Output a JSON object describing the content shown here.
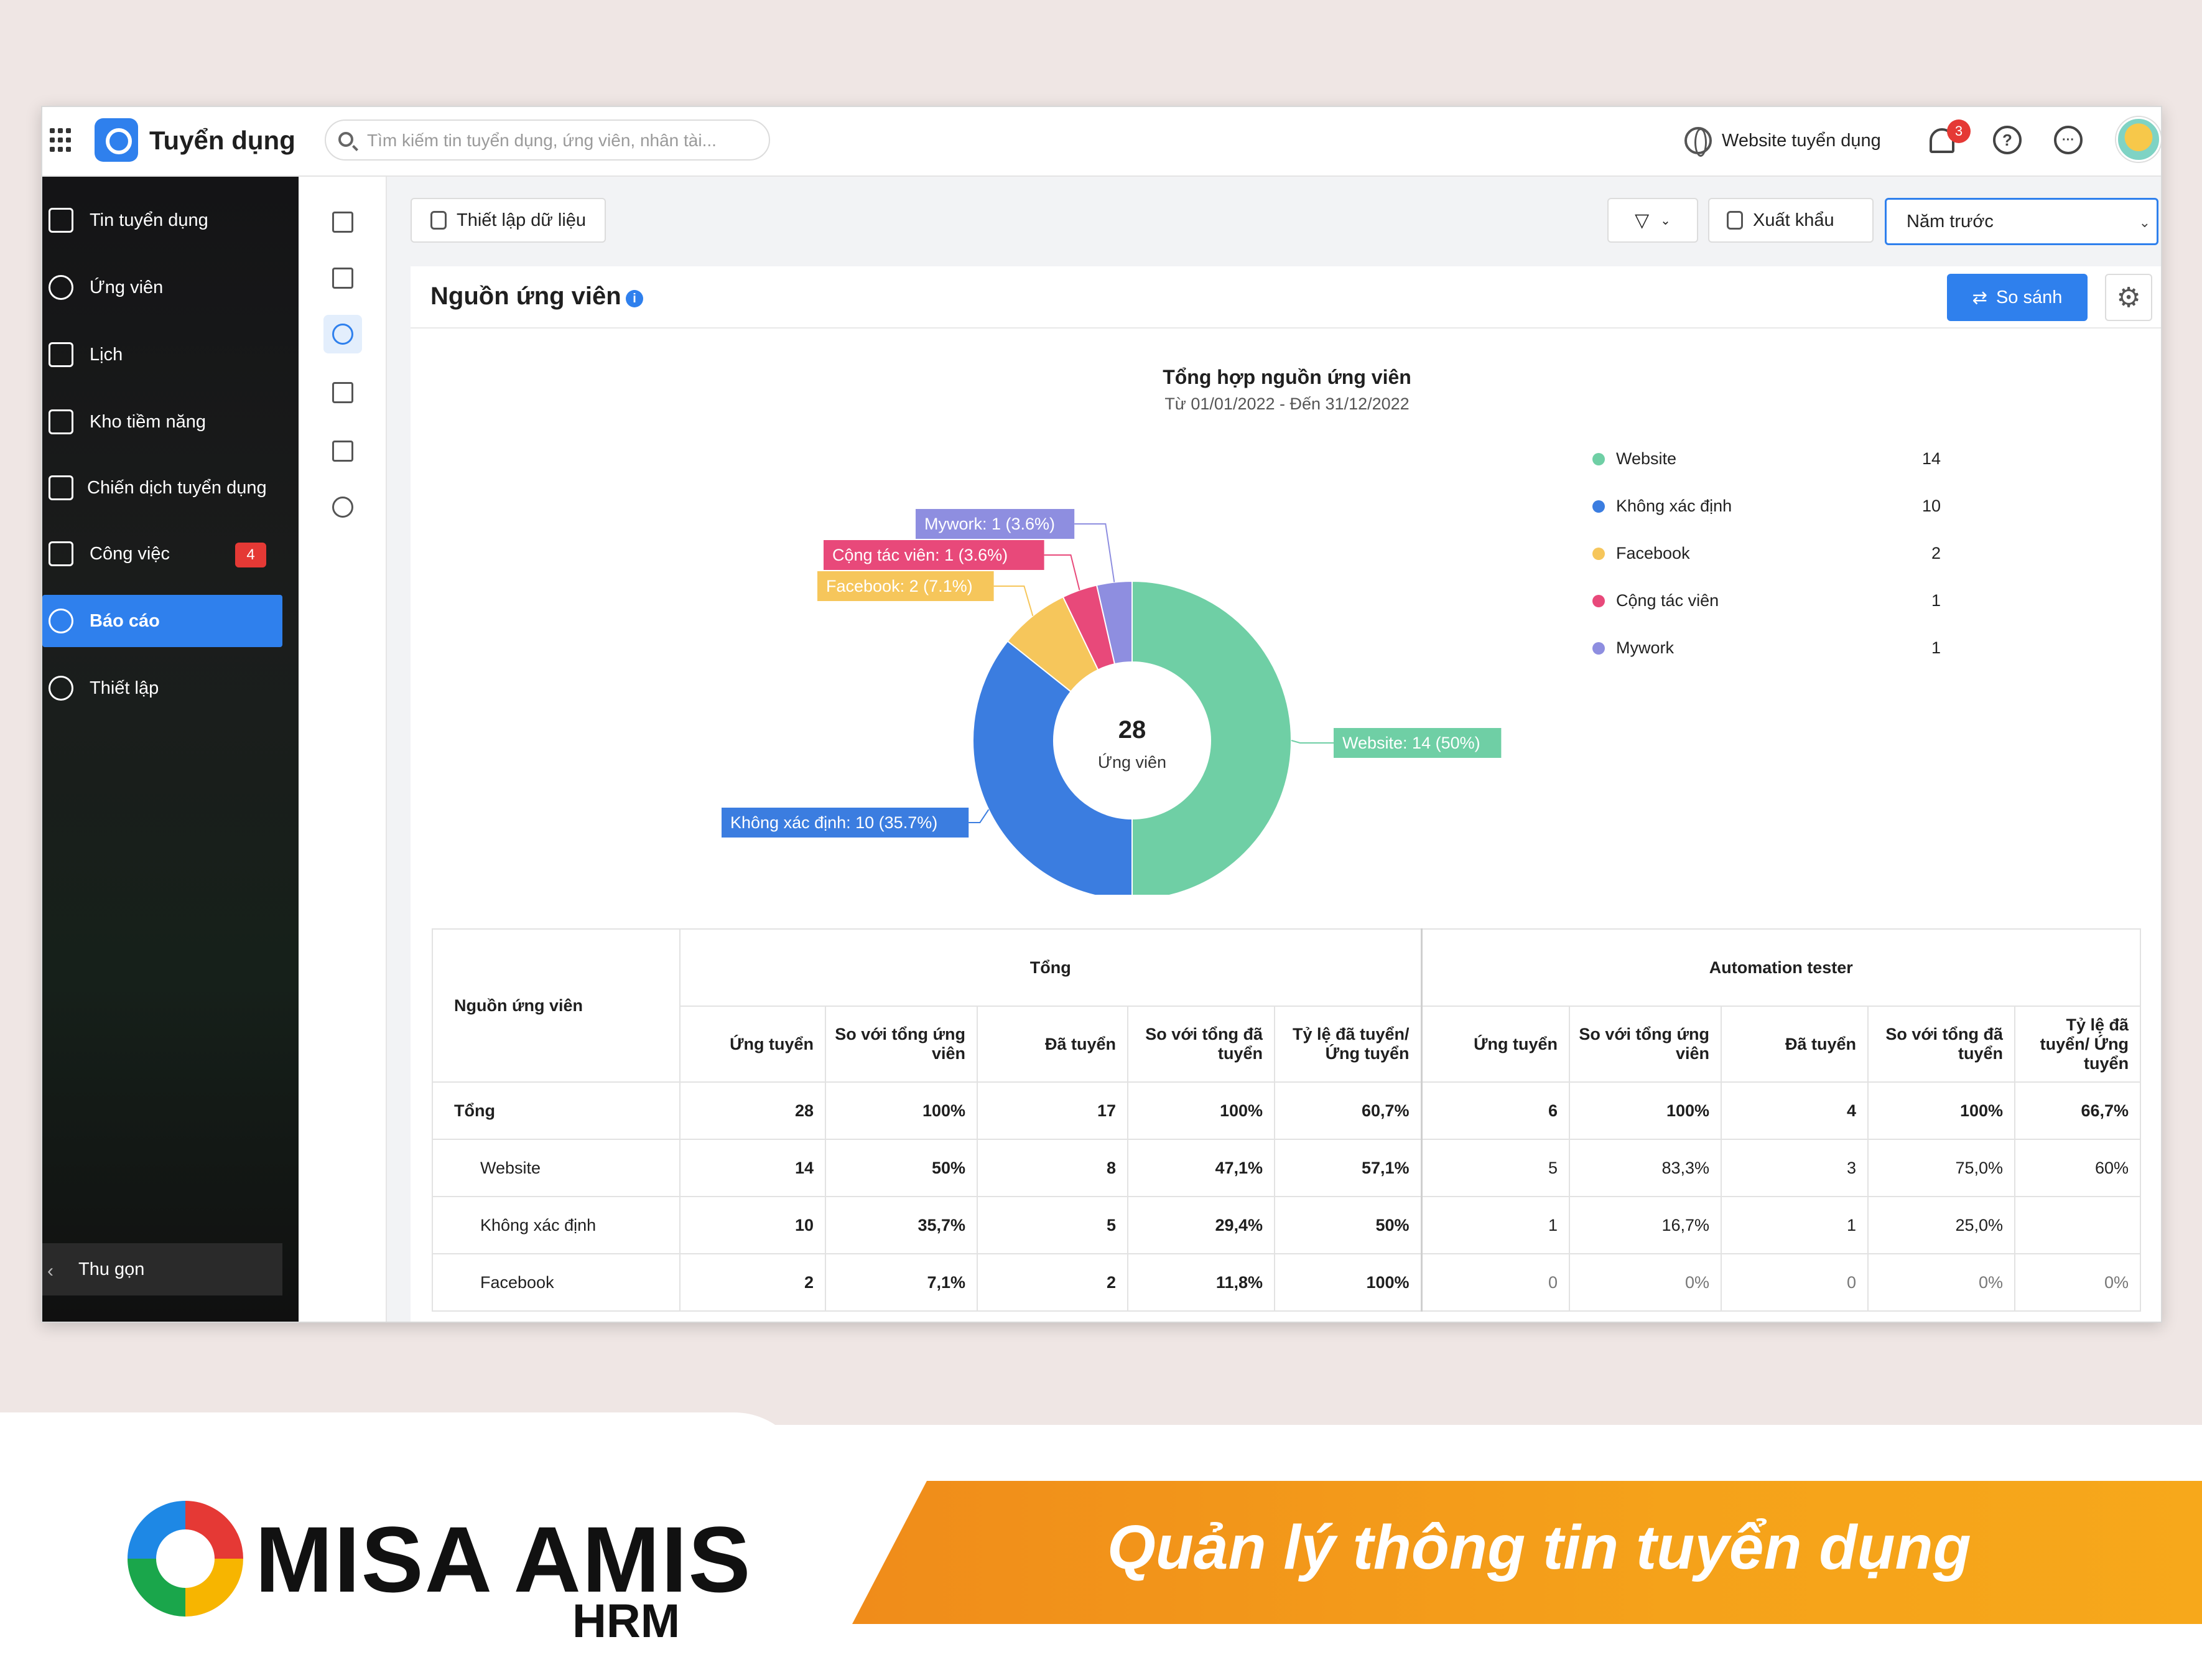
{
  "app": {
    "title": "Tuyển dụng"
  },
  "search": {
    "placeholder": "Tìm kiếm tin tuyển dụng, ứng viên, nhân tài..."
  },
  "header": {
    "website_link": "Website tuyển dụng",
    "notification_count": "3",
    "help_icon": "?",
    "more_icon": "···"
  },
  "sidebar": {
    "items": [
      {
        "label": "Tin tuyển dụng",
        "icon": "newspaper-icon"
      },
      {
        "label": "Ứng viên",
        "icon": "users-icon"
      },
      {
        "label": "Lịch",
        "icon": "calendar-icon"
      },
      {
        "label": "Kho tiềm năng",
        "icon": "talent-pool-icon"
      },
      {
        "label": "Chiến dịch tuyển dụng",
        "icon": "presentation-icon"
      },
      {
        "label": "Công việc",
        "icon": "clipboard-icon",
        "badge": "4"
      },
      {
        "label": "Báo cáo",
        "icon": "pie-chart-icon",
        "active": true
      },
      {
        "label": "Thiết lập",
        "icon": "gear-icon"
      }
    ],
    "collapse_label": "Thu gọn"
  },
  "toolbar": {
    "data_setup": "Thiết lập dữ liệu",
    "export": "Xuất khẩu",
    "period": "Năm trước"
  },
  "panel": {
    "title": "Nguồn ứng viên",
    "compare": "So sánh"
  },
  "chart_data": {
    "type": "pie",
    "title": "Tổng hợp nguồn ứng viên",
    "subtitle": "Từ 01/01/2022 - Đến 31/12/2022",
    "center_value": "28",
    "center_label": "Ứng viên",
    "slices": [
      {
        "name": "Website",
        "value": 14,
        "label": "Website: 14 (50%)",
        "color": "#6fcfa5"
      },
      {
        "name": "Không xác định",
        "value": 10,
        "label": "Không xác định: 10 (35.7%)",
        "color": "#3b7de0"
      },
      {
        "name": "Facebook",
        "value": 2,
        "label": "Facebook: 2 (7.1%)",
        "color": "#f6c65b"
      },
      {
        "name": "Cộng tác viên",
        "value": 1,
        "label": "Cộng tác viên: 1 (3.6%)",
        "color": "#e8497a"
      },
      {
        "name": "Mywork",
        "value": 1,
        "label": "Mywork: 1 (3.6%)",
        "color": "#8e8ee0"
      }
    ]
  },
  "table": {
    "source_header": "Nguồn ứng viên",
    "groups": [
      "Tổng",
      "Automation tester"
    ],
    "columns": [
      "Ứng tuyển",
      "So với tổng ứng viên",
      "Đã tuyển",
      "So với tổng đã tuyển",
      "Tỷ lệ đã tuyển/ Ứng tuyển"
    ],
    "rows": [
      {
        "name": "Tổng",
        "total": [
          "28",
          "100%",
          "17",
          "100%",
          "60,7%"
        ],
        "automation": [
          "6",
          "100%",
          "4",
          "100%",
          "66,7%"
        ]
      },
      {
        "name": "Website",
        "total": [
          "14",
          "50%",
          "8",
          "47,1%",
          "57,1%"
        ],
        "automation": [
          "5",
          "83,3%",
          "3",
          "75,0%",
          "60%"
        ]
      },
      {
        "name": "Không xác định",
        "total": [
          "10",
          "35,7%",
          "5",
          "29,4%",
          "50%"
        ],
        "automation": [
          "1",
          "16,7%",
          "1",
          "25,0%",
          ""
        ]
      },
      {
        "name": "Facebook",
        "total": [
          "2",
          "7,1%",
          "2",
          "11,8%",
          "100%"
        ],
        "automation": [
          "0",
          "0%",
          "0",
          "0%",
          "0%"
        ]
      }
    ]
  },
  "footer": {
    "brand": "MISA AMIS",
    "brand_sub": "HRM",
    "slogan": "Quản lý thông tin tuyển dụng"
  }
}
